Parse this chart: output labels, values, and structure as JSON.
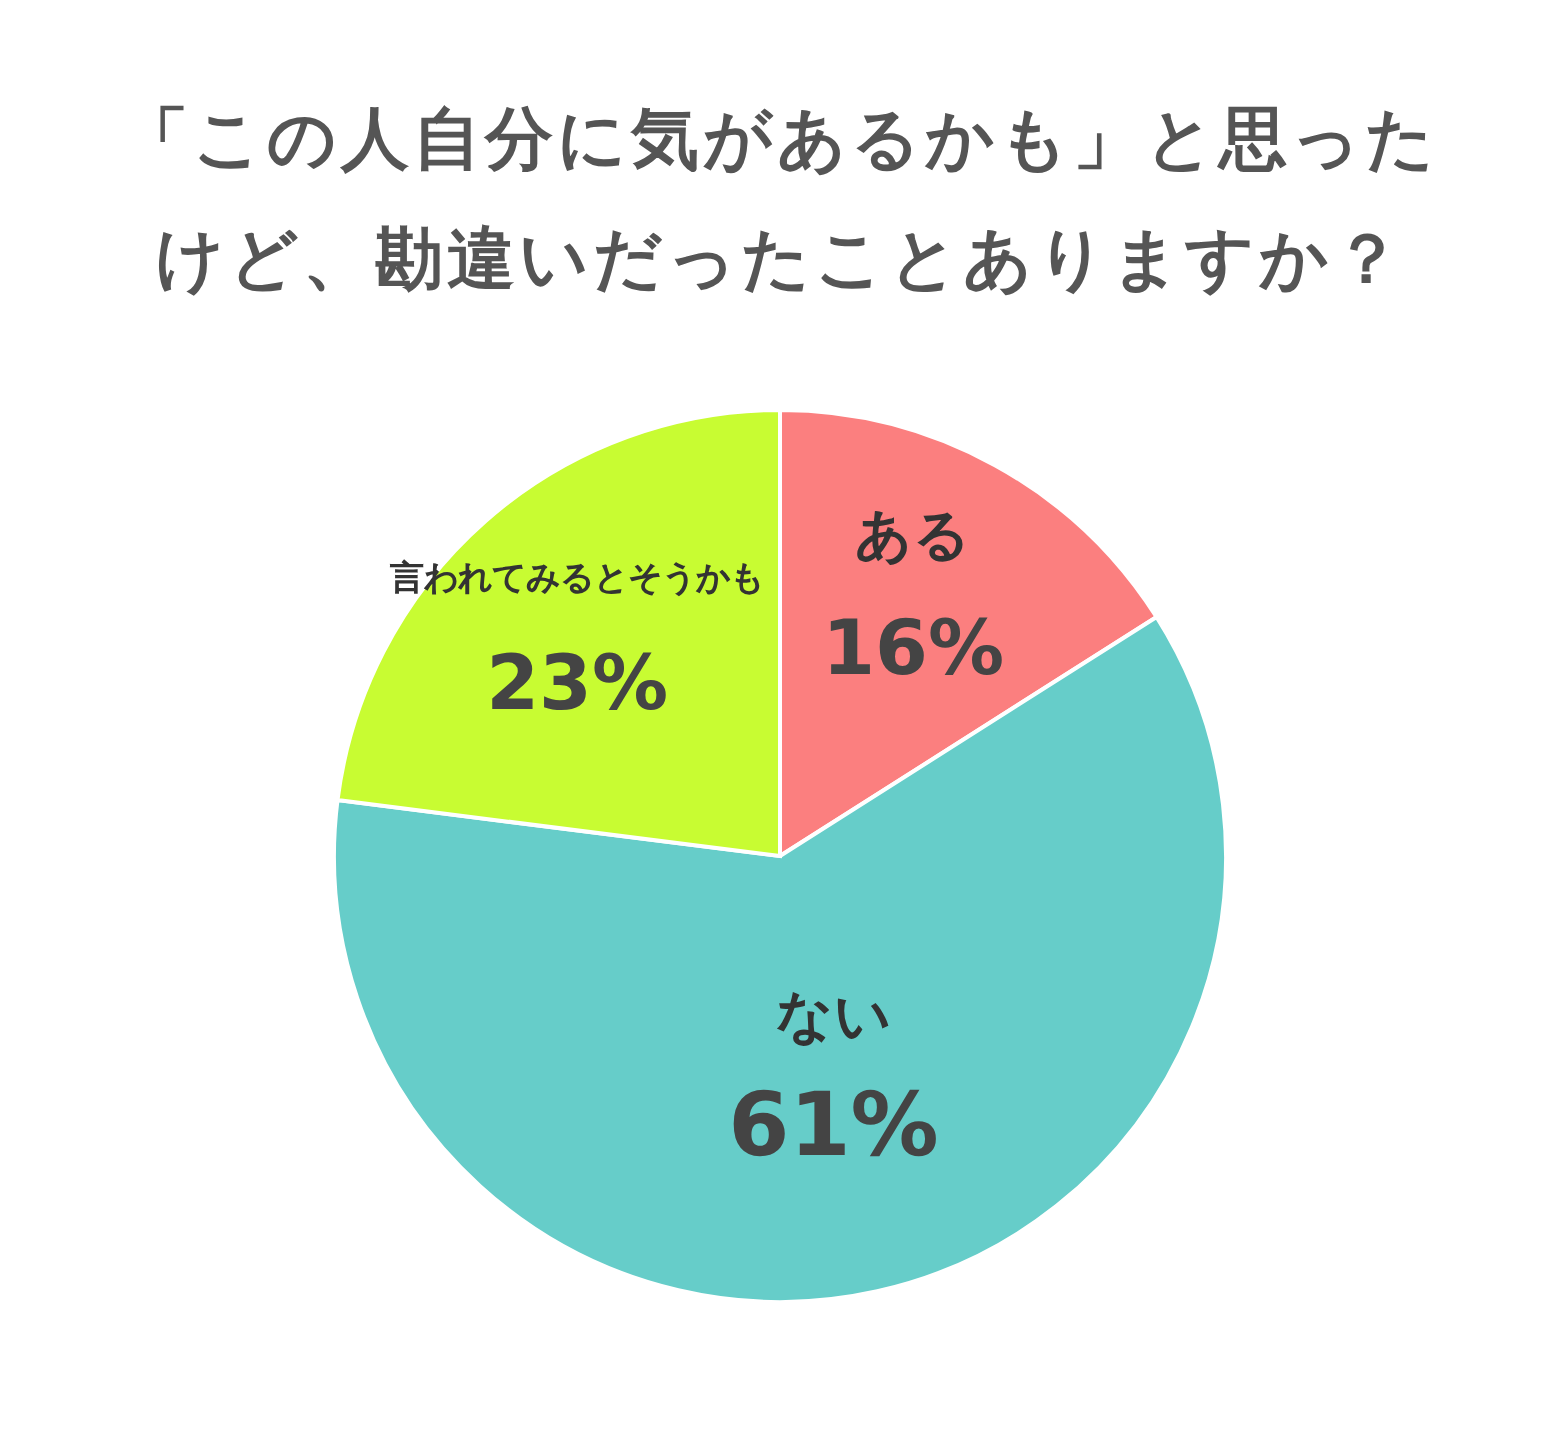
{
  "chart_data": {
    "type": "pie",
    "title": "「この人自分に気があるかも」と思ったけど、勘違いだったことありますか？",
    "categories": [
      "ある",
      "ない",
      "言われてみるとそうかも"
    ],
    "values": [
      16,
      61,
      23
    ],
    "colors": [
      "#fb7f7f",
      "#66cdc9",
      "#c8fc32"
    ],
    "value_labels": [
      "16%",
      "61%",
      "23%"
    ]
  }
}
